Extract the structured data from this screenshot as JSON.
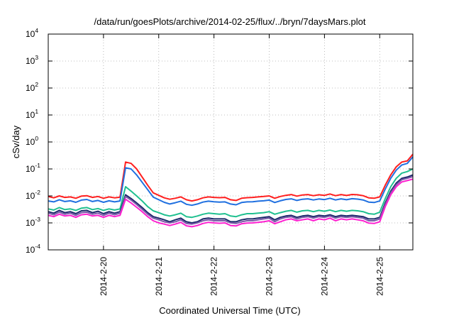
{
  "chart_data": {
    "type": "line",
    "title": "/data/run/goesPlots/archive/2014-02-25/flux/../bryn/7daysMars.plot",
    "xlabel": "Coordinated Universal Time (UTC)",
    "ylabel": "cSv/day",
    "yscale": "log",
    "ylim": [
      0.0001,
      10000
    ],
    "xlim": [
      0,
      6.6
    ],
    "grid": true,
    "y_ticks": [
      {
        "base": "10",
        "exp": "4"
      },
      {
        "base": "10",
        "exp": "3"
      },
      {
        "base": "10",
        "exp": "2"
      },
      {
        "base": "10",
        "exp": "1"
      },
      {
        "base": "10",
        "exp": "0"
      },
      {
        "base": "10",
        "exp": "-1"
      },
      {
        "base": "10",
        "exp": "-2"
      },
      {
        "base": "10",
        "exp": "-3"
      },
      {
        "base": "10",
        "exp": "-4"
      }
    ],
    "y_tick_values": [
      10000,
      1000,
      100,
      10,
      1,
      0.1,
      0.01,
      0.001,
      0.0001
    ],
    "x_ticks": [
      {
        "label": "2014-2-20",
        "x": 1
      },
      {
        "label": "2014-2-21",
        "x": 2
      },
      {
        "label": "2014-2-22",
        "x": 3
      },
      {
        "label": "2014-2-23",
        "x": 4
      },
      {
        "label": "2014-2-24",
        "x": 5
      },
      {
        "label": "2014-2-25",
        "x": 6
      }
    ],
    "x": [
      0,
      0.1,
      0.2,
      0.3,
      0.4,
      0.5,
      0.6,
      0.7,
      0.8,
      0.9,
      1.0,
      1.1,
      1.2,
      1.3,
      1.4,
      1.5,
      1.6,
      1.7,
      1.8,
      1.9,
      2.0,
      2.1,
      2.2,
      2.3,
      2.4,
      2.5,
      2.6,
      2.7,
      2.8,
      2.9,
      3.0,
      3.1,
      3.2,
      3.3,
      3.4,
      3.5,
      3.6,
      3.7,
      3.8,
      3.9,
      4.0,
      4.1,
      4.2,
      4.3,
      4.4,
      4.5,
      4.6,
      4.7,
      4.8,
      4.9,
      5.0,
      5.1,
      5.2,
      5.3,
      5.4,
      5.5,
      5.6,
      5.7,
      5.8,
      5.9,
      6.0,
      6.1,
      6.2,
      6.3,
      6.4,
      6.5,
      6.6
    ],
    "series": [
      {
        "color": "#ff1f1f",
        "values": [
          0.0095,
          0.0085,
          0.01,
          0.0088,
          0.0092,
          0.0082,
          0.0098,
          0.0102,
          0.0088,
          0.0095,
          0.0082,
          0.0092,
          0.0085,
          0.009,
          0.18,
          0.16,
          0.1,
          0.05,
          0.025,
          0.013,
          0.0105,
          0.0085,
          0.0075,
          0.0082,
          0.0092,
          0.0072,
          0.0065,
          0.0072,
          0.0085,
          0.0092,
          0.0088,
          0.0086,
          0.0088,
          0.0072,
          0.0068,
          0.0082,
          0.0086,
          0.0088,
          0.0092,
          0.0095,
          0.01,
          0.0082,
          0.0095,
          0.0105,
          0.0112,
          0.0098,
          0.0108,
          0.0112,
          0.0102,
          0.011,
          0.0105,
          0.0118,
          0.0102,
          0.0112,
          0.0104,
          0.0113,
          0.011,
          0.0102,
          0.0085,
          0.0082,
          0.0092,
          0.025,
          0.06,
          0.12,
          0.18,
          0.2,
          0.35
        ]
      },
      {
        "color": "#2070e0",
        "values": [
          0.0065,
          0.006,
          0.0072,
          0.0062,
          0.0066,
          0.0058,
          0.007,
          0.0074,
          0.0062,
          0.0068,
          0.0058,
          0.0066,
          0.006,
          0.0065,
          0.11,
          0.1,
          0.06,
          0.032,
          0.017,
          0.009,
          0.0072,
          0.0058,
          0.005,
          0.0056,
          0.0064,
          0.0049,
          0.0045,
          0.005,
          0.0059,
          0.0064,
          0.0061,
          0.0059,
          0.006,
          0.005,
          0.0047,
          0.0057,
          0.006,
          0.0061,
          0.0064,
          0.0066,
          0.007,
          0.0057,
          0.0066,
          0.0074,
          0.0078,
          0.0068,
          0.0075,
          0.0078,
          0.0071,
          0.0077,
          0.0073,
          0.0082,
          0.0071,
          0.0078,
          0.0072,
          0.0079,
          0.0076,
          0.0071,
          0.0059,
          0.0057,
          0.0065,
          0.018,
          0.045,
          0.09,
          0.14,
          0.16,
          0.28
        ]
      },
      {
        "color": "#20c090",
        "values": [
          0.0033,
          0.003,
          0.0037,
          0.0031,
          0.0033,
          0.0029,
          0.0035,
          0.0037,
          0.0031,
          0.0034,
          0.0029,
          0.0033,
          0.003,
          0.0033,
          0.022,
          0.015,
          0.01,
          0.0065,
          0.004,
          0.0028,
          0.0024,
          0.002,
          0.0018,
          0.002,
          0.0023,
          0.0017,
          0.0016,
          0.0018,
          0.0021,
          0.0023,
          0.0022,
          0.0021,
          0.0022,
          0.0018,
          0.0017,
          0.002,
          0.0022,
          0.0022,
          0.0023,
          0.0024,
          0.0026,
          0.0021,
          0.0024,
          0.0027,
          0.0029,
          0.0025,
          0.0028,
          0.0029,
          0.0026,
          0.0029,
          0.0027,
          0.003,
          0.0026,
          0.0029,
          0.0027,
          0.0029,
          0.0028,
          0.0026,
          0.0022,
          0.0021,
          0.0025,
          0.008,
          0.022,
          0.045,
          0.07,
          0.08,
          0.1
        ]
      },
      {
        "color": "#1c2a6b",
        "values": [
          0.0026,
          0.0023,
          0.0029,
          0.0024,
          0.0026,
          0.0022,
          0.0028,
          0.0029,
          0.0024,
          0.0027,
          0.0022,
          0.0026,
          0.0023,
          0.0026,
          0.011,
          0.008,
          0.0055,
          0.0037,
          0.0024,
          0.0017,
          0.0015,
          0.0013,
          0.0011,
          0.0013,
          0.0015,
          0.0011,
          0.001,
          0.0011,
          0.0014,
          0.0015,
          0.0014,
          0.0014,
          0.0014,
          0.0011,
          0.0011,
          0.0013,
          0.0014,
          0.0014,
          0.0015,
          0.0016,
          0.0017,
          0.0013,
          0.0016,
          0.0018,
          0.0019,
          0.0016,
          0.0018,
          0.0019,
          0.0017,
          0.0019,
          0.0018,
          0.002,
          0.0017,
          0.0019,
          0.0018,
          0.0019,
          0.0018,
          0.0017,
          0.0014,
          0.0014,
          0.0016,
          0.0055,
          0.015,
          0.03,
          0.045,
          0.05,
          0.06
        ]
      },
      {
        "color": "#7a5aa8",
        "values": [
          0.0023,
          0.002,
          0.0025,
          0.0021,
          0.0023,
          0.0019,
          0.0024,
          0.0025,
          0.0021,
          0.0023,
          0.0019,
          0.0023,
          0.002,
          0.0023,
          0.0095,
          0.007,
          0.0048,
          0.0032,
          0.0021,
          0.0015,
          0.0013,
          0.0011,
          0.001,
          0.0011,
          0.0013,
          0.00095,
          0.0009,
          0.001,
          0.0012,
          0.0013,
          0.0012,
          0.0012,
          0.0012,
          0.001,
          0.00095,
          0.0011,
          0.0012,
          0.0012,
          0.0013,
          0.0014,
          0.0015,
          0.0011,
          0.0014,
          0.0016,
          0.0017,
          0.0014,
          0.0016,
          0.0017,
          0.0015,
          0.0017,
          0.0016,
          0.0018,
          0.0015,
          0.0017,
          0.0016,
          0.0017,
          0.0016,
          0.0015,
          0.0012,
          0.0012,
          0.0014,
          0.0048,
          0.013,
          0.026,
          0.04,
          0.045,
          0.052
        ]
      },
      {
        "color": "#ff20d0",
        "values": [
          0.0019,
          0.0017,
          0.0021,
          0.0018,
          0.0019,
          0.0016,
          0.002,
          0.0021,
          0.0018,
          0.0019,
          0.0016,
          0.0019,
          0.0017,
          0.0019,
          0.0075,
          0.0055,
          0.0038,
          0.0026,
          0.0017,
          0.0012,
          0.001,
          0.0009,
          0.0008,
          0.0009,
          0.00105,
          0.00078,
          0.00072,
          0.0008,
          0.00095,
          0.00105,
          0.001,
          0.00097,
          0.001,
          0.0008,
          0.00077,
          0.00093,
          0.00098,
          0.001,
          0.00105,
          0.0011,
          0.0012,
          0.00093,
          0.0011,
          0.0013,
          0.0014,
          0.0012,
          0.0013,
          0.0014,
          0.0012,
          0.0014,
          0.0013,
          0.0015,
          0.0012,
          0.0014,
          0.0013,
          0.0014,
          0.0013,
          0.0012,
          0.00098,
          0.00095,
          0.0011,
          0.004,
          0.011,
          0.022,
          0.033,
          0.037,
          0.042
        ]
      }
    ]
  }
}
